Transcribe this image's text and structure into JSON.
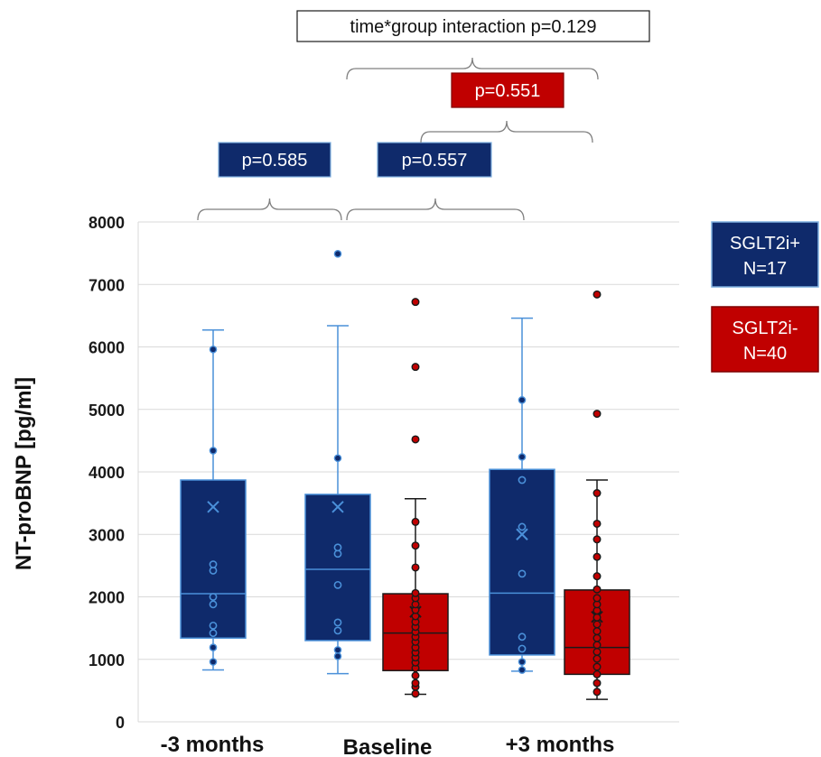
{
  "chart_data": {
    "type": "box",
    "ylabel": "NT-proBNP [pg/ml]",
    "xlabel": "",
    "ylim": [
      0,
      8000
    ],
    "yticks": [
      "0",
      "1000",
      "2000",
      "3000",
      "4000",
      "5000",
      "6000",
      "7000",
      "8000"
    ],
    "grid": true,
    "legend_position": "right",
    "categories": [
      "-3 months",
      "Baseline",
      "+3 months"
    ],
    "series": [
      {
        "name": "SGLT2i+",
        "n_label": "N=17",
        "color": "#0f2a6b",
        "accent": "#4a90d9",
        "boxes": [
          {
            "category": "-3 months",
            "min": 830,
            "q1": 1340,
            "median": 2050,
            "q3": 3870,
            "max": 6270,
            "mean": 3440,
            "points": [
              960,
              1190,
              1420,
              1540,
              1880,
              2000,
              2420,
              2520,
              4340,
              5960
            ]
          },
          {
            "category": "Baseline",
            "min": 770,
            "q1": 1300,
            "median": 2440,
            "q3": 3640,
            "max": 6340,
            "mean": 3440,
            "points": [
              1050,
              1150,
              1460,
              1590,
              2190,
              2690,
              2790,
              4220,
              7490
            ]
          },
          {
            "category": "+3 months",
            "min": 810,
            "q1": 1070,
            "median": 2060,
            "q3": 4040,
            "max": 6460,
            "mean": 3000,
            "points": [
              830,
              960,
              1170,
              1360,
              2370,
              3120,
              3870,
              4240,
              5150
            ]
          }
        ]
      },
      {
        "name": "SGLT2i-",
        "n_label": "N=40",
        "color": "#c00000",
        "accent": "#1a1a1a",
        "boxes": [
          {
            "category": "Baseline",
            "min": 440,
            "q1": 820,
            "median": 1420,
            "q3": 2050,
            "max": 3570,
            "mean": 1760,
            "points": [
              450,
              560,
              620,
              740,
              860,
              950,
              1030,
              1110,
              1190,
              1280,
              1360,
              1440,
              1520,
              1600,
              1690,
              1790,
              1880,
              1980,
              2060,
              2470,
              2820,
              3200,
              4520,
              5680,
              6720
            ]
          },
          {
            "category": "+3 months",
            "min": 360,
            "q1": 760,
            "median": 1190,
            "q3": 2110,
            "max": 3870,
            "mean": 1680,
            "points": [
              480,
              620,
              760,
              880,
              1010,
              1120,
              1230,
              1340,
              1450,
              1560,
              1670,
              1780,
              1880,
              1980,
              2120,
              2330,
              2640,
              2920,
              3170,
              3660,
              4930,
              6840
            ]
          }
        ]
      }
    ],
    "annotations": [
      {
        "label": "p=0.585",
        "from": "-3 months",
        "to": "Baseline",
        "style": "filled",
        "color": "#0f2a6b"
      },
      {
        "label": "p=0.557",
        "from": "Baseline",
        "to": "+3 months",
        "style": "filled",
        "color": "#0f2a6b"
      },
      {
        "label": "p=0.551",
        "from": "Baseline",
        "to": "+3 months",
        "style": "filled",
        "color": "#c00000"
      },
      {
        "label": "time*group interaction p=0.129",
        "from": "Baseline",
        "to": "+3 months",
        "style": "outline",
        "color": "#ffffff"
      }
    ]
  }
}
